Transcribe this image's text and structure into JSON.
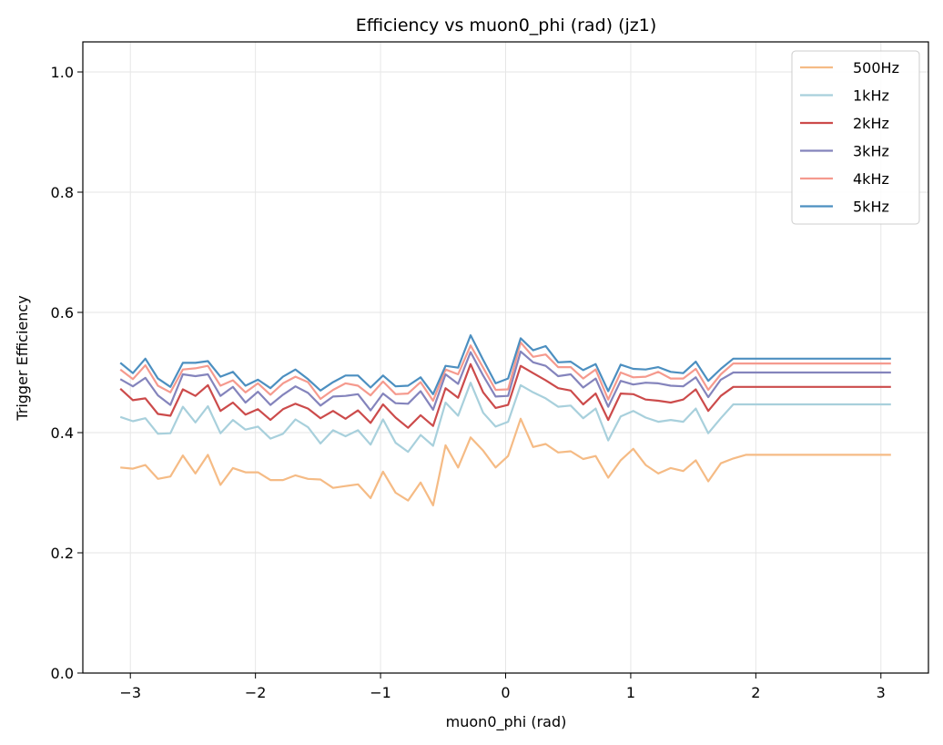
{
  "chart_data": {
    "type": "line",
    "title": "Efficiency vs muon0_phi (rad) (jz1)",
    "xlabel": "muon0_phi (rad)",
    "ylabel": "Trigger Efficiency",
    "xlim": [
      -3.38,
      3.38
    ],
    "ylim": [
      0.0,
      1.05
    ],
    "xticks": [
      -3,
      -2,
      -1,
      0,
      1,
      2,
      3
    ],
    "xtick_labels": [
      "−3",
      "−2",
      "−1",
      "0",
      "1",
      "2",
      "3"
    ],
    "yticks": [
      0.0,
      0.2,
      0.4,
      0.6,
      0.8,
      1.0
    ],
    "ytick_labels": [
      "0.0",
      "0.2",
      "0.4",
      "0.6",
      "0.8",
      "1.0"
    ],
    "grid": true,
    "legend_position": "top-right",
    "x": [
      -3.08,
      -2.98,
      -2.88,
      -2.78,
      -2.68,
      -2.58,
      -2.48,
      -2.38,
      -2.28,
      -2.18,
      -2.08,
      -1.98,
      -1.88,
      -1.78,
      -1.68,
      -1.58,
      -1.48,
      -1.38,
      -1.28,
      -1.18,
      -1.08,
      -0.98,
      -0.88,
      -0.78,
      -0.68,
      -0.58,
      -0.48,
      -0.38,
      -0.28,
      -0.18,
      -0.08,
      0.02,
      0.12,
      0.22,
      0.32,
      0.42,
      0.52,
      0.62,
      0.72,
      0.82,
      0.92,
      1.02,
      1.12,
      1.22,
      1.32,
      1.42,
      1.52,
      1.62,
      1.72,
      1.82,
      1.92,
      2.02,
      2.12,
      2.22,
      2.32,
      2.42,
      2.52,
      2.62,
      2.72,
      2.82,
      2.92,
      3.02,
      3.08
    ],
    "series": [
      {
        "name": "500Hz",
        "color": "#f5bb85",
        "values": [
          0.342,
          0.34,
          0.346,
          0.323,
          0.327,
          0.362,
          0.332,
          0.363,
          0.313,
          0.341,
          0.334,
          0.334,
          0.321,
          0.321,
          0.329,
          0.323,
          0.322,
          0.308,
          0.311,
          0.314,
          0.291,
          0.335,
          0.3,
          0.287,
          0.317,
          0.279,
          0.379,
          0.342,
          0.392,
          0.37,
          0.342,
          0.361,
          0.423,
          0.376,
          0.381,
          0.367,
          0.369,
          0.356,
          0.361,
          0.325,
          0.354,
          0.373,
          0.346,
          0.332,
          0.341,
          0.336,
          0.354,
          0.319,
          0.349,
          0.357,
          0.363,
          0.363,
          0.363,
          0.363,
          0.363,
          0.363,
          0.363,
          0.363,
          0.363,
          0.363,
          0.363,
          0.363,
          0.363
        ]
      },
      {
        "name": "1kHz",
        "color": "#a8d0dc",
        "values": [
          0.426,
          0.419,
          0.424,
          0.398,
          0.399,
          0.443,
          0.417,
          0.444,
          0.399,
          0.421,
          0.405,
          0.41,
          0.39,
          0.398,
          0.422,
          0.409,
          0.382,
          0.404,
          0.394,
          0.404,
          0.38,
          0.422,
          0.383,
          0.368,
          0.396,
          0.378,
          0.45,
          0.428,
          0.483,
          0.433,
          0.41,
          0.418,
          0.479,
          0.467,
          0.457,
          0.443,
          0.445,
          0.424,
          0.44,
          0.387,
          0.427,
          0.436,
          0.425,
          0.418,
          0.421,
          0.418,
          0.44,
          0.399,
          0.424,
          0.447,
          0.447,
          0.447,
          0.447,
          0.447,
          0.447,
          0.447,
          0.447,
          0.447,
          0.447,
          0.447,
          0.447,
          0.447,
          0.447
        ]
      },
      {
        "name": "2kHz",
        "color": "#cc4b4b",
        "values": [
          0.473,
          0.454,
          0.457,
          0.431,
          0.428,
          0.472,
          0.461,
          0.479,
          0.436,
          0.45,
          0.43,
          0.439,
          0.421,
          0.439,
          0.448,
          0.44,
          0.424,
          0.436,
          0.423,
          0.437,
          0.416,
          0.447,
          0.425,
          0.408,
          0.429,
          0.411,
          0.474,
          0.458,
          0.514,
          0.467,
          0.441,
          0.446,
          0.511,
          0.499,
          0.487,
          0.474,
          0.47,
          0.447,
          0.465,
          0.421,
          0.465,
          0.464,
          0.455,
          0.453,
          0.45,
          0.455,
          0.472,
          0.436,
          0.461,
          0.476,
          0.476,
          0.476,
          0.476,
          0.476,
          0.476,
          0.476,
          0.476,
          0.476,
          0.476,
          0.476,
          0.476,
          0.476,
          0.476
        ]
      },
      {
        "name": "3kHz",
        "color": "#8484bc",
        "values": [
          0.489,
          0.477,
          0.491,
          0.462,
          0.446,
          0.497,
          0.494,
          0.497,
          0.461,
          0.476,
          0.45,
          0.468,
          0.446,
          0.463,
          0.477,
          0.466,
          0.445,
          0.46,
          0.461,
          0.464,
          0.437,
          0.465,
          0.449,
          0.448,
          0.469,
          0.438,
          0.497,
          0.481,
          0.534,
          0.495,
          0.46,
          0.461,
          0.535,
          0.517,
          0.511,
          0.494,
          0.497,
          0.475,
          0.49,
          0.443,
          0.486,
          0.48,
          0.483,
          0.482,
          0.478,
          0.477,
          0.492,
          0.459,
          0.488,
          0.5,
          0.5,
          0.5,
          0.5,
          0.5,
          0.5,
          0.5,
          0.5,
          0.5,
          0.5,
          0.5,
          0.5,
          0.5,
          0.5
        ]
      },
      {
        "name": "4kHz",
        "color": "#f59a8e",
        "values": [
          0.505,
          0.489,
          0.512,
          0.478,
          0.467,
          0.505,
          0.507,
          0.511,
          0.478,
          0.487,
          0.467,
          0.482,
          0.463,
          0.482,
          0.493,
          0.484,
          0.456,
          0.471,
          0.482,
          0.478,
          0.462,
          0.485,
          0.464,
          0.465,
          0.484,
          0.453,
          0.505,
          0.497,
          0.545,
          0.508,
          0.471,
          0.472,
          0.55,
          0.526,
          0.53,
          0.509,
          0.509,
          0.49,
          0.505,
          0.455,
          0.5,
          0.492,
          0.493,
          0.501,
          0.49,
          0.49,
          0.506,
          0.471,
          0.497,
          0.515,
          0.515,
          0.515,
          0.515,
          0.515,
          0.515,
          0.515,
          0.515,
          0.515,
          0.515,
          0.515,
          0.515,
          0.515,
          0.515
        ]
      },
      {
        "name": "5kHz",
        "color": "#4c8fc0",
        "values": [
          0.516,
          0.499,
          0.523,
          0.49,
          0.476,
          0.516,
          0.516,
          0.519,
          0.493,
          0.501,
          0.478,
          0.488,
          0.474,
          0.493,
          0.505,
          0.489,
          0.47,
          0.484,
          0.495,
          0.495,
          0.475,
          0.495,
          0.477,
          0.478,
          0.492,
          0.464,
          0.511,
          0.508,
          0.562,
          0.521,
          0.482,
          0.49,
          0.557,
          0.537,
          0.544,
          0.517,
          0.518,
          0.504,
          0.514,
          0.469,
          0.513,
          0.506,
          0.505,
          0.509,
          0.501,
          0.499,
          0.518,
          0.486,
          0.506,
          0.523,
          0.523,
          0.523,
          0.523,
          0.523,
          0.523,
          0.523,
          0.523,
          0.523,
          0.523,
          0.523,
          0.523,
          0.523,
          0.523
        ]
      }
    ]
  }
}
